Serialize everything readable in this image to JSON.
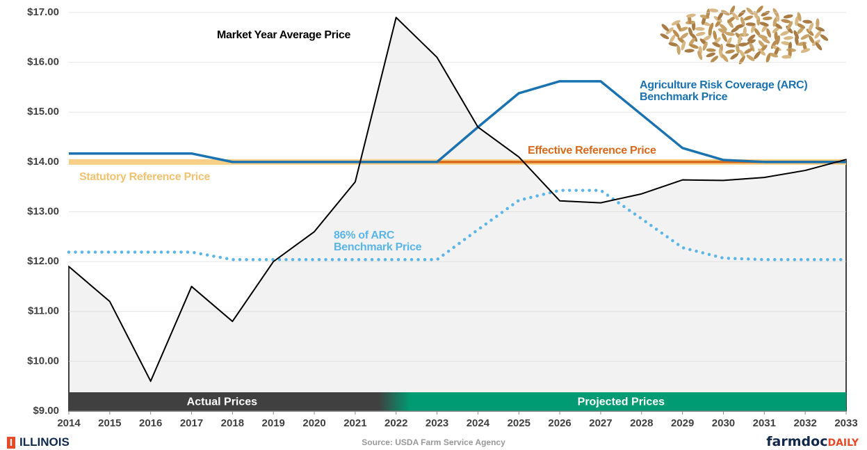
{
  "chart_data": {
    "type": "line",
    "x": [
      2014,
      2015,
      2016,
      2017,
      2018,
      2019,
      2020,
      2021,
      2022,
      2023,
      2024,
      2025,
      2026,
      2027,
      2028,
      2029,
      2030,
      2031,
      2032,
      2033
    ],
    "series": [
      {
        "name": "Statutory Reference Price",
        "color": "#f7cf86",
        "style": "band",
        "values": [
          14,
          14,
          14,
          14,
          14,
          14,
          14,
          14,
          14,
          14,
          14,
          14,
          14,
          14,
          14,
          14,
          14,
          14,
          14,
          14
        ]
      },
      {
        "name": "Effective Reference Price",
        "color": "#d9691a",
        "style": "solid",
        "values": [
          null,
          null,
          null,
          null,
          null,
          null,
          null,
          null,
          null,
          14,
          14,
          14,
          14,
          14,
          14,
          14,
          14,
          14,
          14,
          14
        ]
      },
      {
        "name": "Agriculture Risk Coverage (ARC) Benchmark Price",
        "color": "#1a72b0",
        "style": "solid",
        "values": [
          14.17,
          14.17,
          14.17,
          14.17,
          14.0,
          14.0,
          14.0,
          14.0,
          14.0,
          14.0,
          14.7,
          15.38,
          15.62,
          15.62,
          14.95,
          14.28,
          14.04,
          14.0,
          14.0,
          14.0
        ]
      },
      {
        "name": "86% of ARC Benchmark Price",
        "color": "#5ab5e8",
        "style": "dotted",
        "values": [
          12.19,
          12.19,
          12.19,
          12.19,
          12.04,
          12.04,
          12.04,
          12.04,
          12.04,
          12.04,
          12.64,
          13.23,
          13.43,
          13.43,
          12.86,
          12.28,
          12.07,
          12.04,
          12.04,
          12.04
        ]
      },
      {
        "name": "Market Year Average Price",
        "color": "#000000",
        "style": "area",
        "values": [
          11.9,
          11.2,
          9.6,
          11.5,
          10.8,
          12.0,
          12.6,
          13.6,
          16.9,
          16.1,
          14.7,
          14.1,
          13.22,
          13.18,
          13.36,
          13.64,
          13.63,
          13.69,
          13.83,
          14.05
        ]
      }
    ],
    "bands": [
      {
        "label": "Actual Prices",
        "color": "#404040",
        "x": [
          2014,
          2022
        ]
      },
      {
        "label": "Projected Prices",
        "color": "#009b72",
        "x": [
          2022,
          2033
        ]
      }
    ],
    "xlim": [
      2014,
      2033
    ],
    "xticks": [
      2014,
      2015,
      2016,
      2017,
      2018,
      2019,
      2020,
      2021,
      2022,
      2023,
      2024,
      2025,
      2026,
      2027,
      2028,
      2029,
      2030,
      2031,
      2032,
      2033
    ],
    "ylim": [
      9,
      17
    ],
    "yticks": [
      {
        "value": 9,
        "label": "$9.00"
      },
      {
        "value": 10,
        "label": "$10.00"
      },
      {
        "value": 11,
        "label": "$11.00"
      },
      {
        "value": 12,
        "label": "$12.00"
      },
      {
        "value": 13,
        "label": "$13.00"
      },
      {
        "value": 14,
        "label": "$14.00"
      },
      {
        "value": 15,
        "label": "$15.00"
      },
      {
        "value": 16,
        "label": "$16.00"
      },
      {
        "value": 17,
        "label": "$17.00"
      }
    ],
    "grid": true,
    "source": "Source: USDA Farm Service Agency",
    "logo_left": "ILLINOIS",
    "logo_right": [
      "farmdoc",
      "DAILY"
    ]
  }
}
